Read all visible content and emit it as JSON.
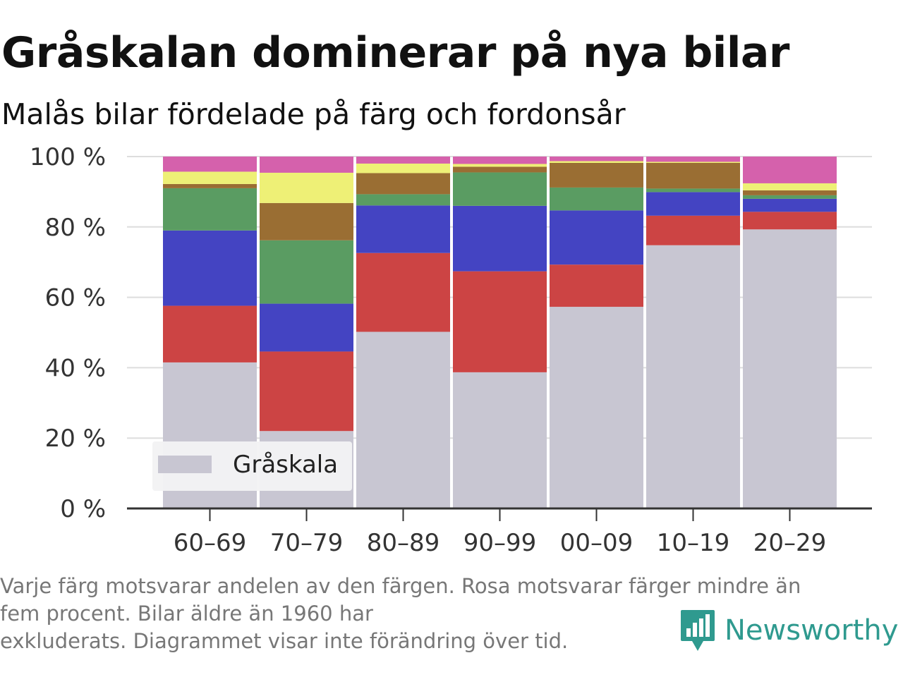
{
  "title": "Gråskalan dominerar på nya bilar",
  "subtitle": "Malås bilar fördelade på färg och fordonsår",
  "footnote": [
    "Varje färg motsvarar andelen av den färgen. Rosa motsvarar färger mindre än",
    "fem procent. Bilar äldre än 1960 har",
    "exkluderats. Diagrammet visar inte förändring över tid."
  ],
  "brand": {
    "name": "Newsworthy",
    "color": "#2f9a8f",
    "icon": "newsworthy-logo-icon"
  },
  "legend": {
    "label": "Gråskala",
    "placement": "bottom-left"
  },
  "chart_data": {
    "type": "bar",
    "stacked": true,
    "categories": [
      "60–69",
      "70–79",
      "80–89",
      "90–99",
      "00–09",
      "10–19",
      "20–29"
    ],
    "ylim": [
      0,
      100
    ],
    "yticks": [
      0,
      20,
      40,
      60,
      80,
      100
    ],
    "ytick_labels": [
      "0 %",
      "20 %",
      "40 %",
      "60 %",
      "80 %",
      "100 %"
    ],
    "grid": true,
    "series": [
      {
        "name": "Gråskala",
        "color": "#c8c6d2",
        "values": [
          41.5,
          22,
          50.2,
          38.7,
          57.3,
          74.8,
          79.3
        ]
      },
      {
        "color": "#cc4444",
        "values": [
          16.1,
          22.6,
          22.4,
          28.7,
          12,
          8.4,
          5
        ]
      },
      {
        "color": "#4444c2",
        "values": [
          21.4,
          13.6,
          13.5,
          18.6,
          15.4,
          6.7,
          3.7
        ]
      },
      {
        "color": "#5a9c62",
        "values": [
          12,
          18,
          3.2,
          9.5,
          6.5,
          1,
          1
        ]
      },
      {
        "color": "#9a6e33",
        "values": [
          1.2,
          10.6,
          6,
          1.6,
          7,
          7.3,
          1.4
        ]
      },
      {
        "color": "#eef076",
        "values": [
          3.5,
          8.6,
          2.7,
          0.8,
          0.5,
          0.3,
          2
        ]
      },
      {
        "color": "#d561ac",
        "values": [
          4.3,
          4.6,
          2,
          2.1,
          1.3,
          1.5,
          7.6
        ]
      }
    ]
  }
}
